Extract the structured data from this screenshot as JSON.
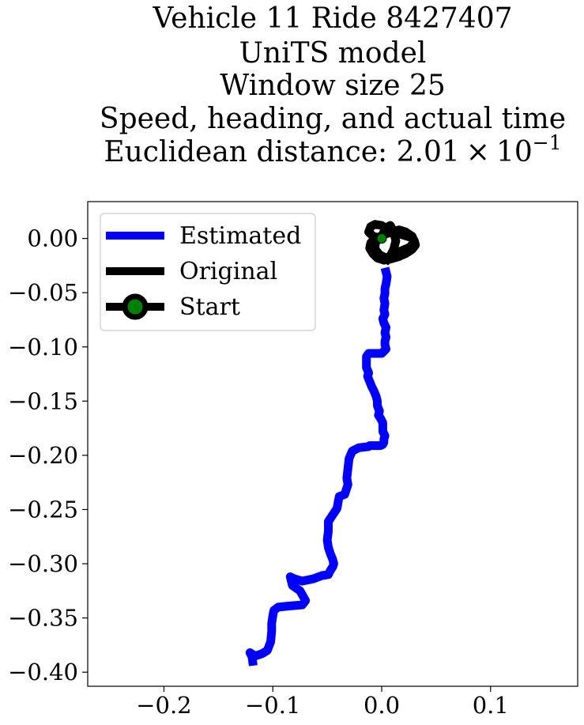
{
  "chart_data": {
    "type": "line",
    "title_lines": [
      "Vehicle 11 Ride 8427407",
      "UniTS model",
      "Window size 25",
      "Speed, heading, and actual time"
    ],
    "title_distance_prefix": "Euclidean distance: ",
    "title_distance_mantissa": "2.01",
    "title_distance_times": "×",
    "title_distance_base": "10",
    "title_distance_exponent": "−1",
    "xlim": [
      -0.27,
      0.18
    ],
    "ylim": [
      -0.413,
      0.034
    ],
    "xticks": [
      {
        "value": -0.2,
        "label": "−0.2"
      },
      {
        "value": -0.1,
        "label": "−0.1"
      },
      {
        "value": 0.0,
        "label": "0.0"
      },
      {
        "value": 0.1,
        "label": "0.1"
      }
    ],
    "yticks": [
      {
        "value": 0.0,
        "label": "0.00"
      },
      {
        "value": -0.05,
        "label": "−0.05"
      },
      {
        "value": -0.1,
        "label": "−0.10"
      },
      {
        "value": -0.15,
        "label": "−0.15"
      },
      {
        "value": -0.2,
        "label": "−0.20"
      },
      {
        "value": -0.25,
        "label": "−0.25"
      },
      {
        "value": -0.3,
        "label": "−0.30"
      },
      {
        "value": -0.35,
        "label": "−0.35"
      },
      {
        "value": -0.4,
        "label": "−0.40"
      }
    ],
    "legend": {
      "location": "upper-left",
      "entries": [
        {
          "key": "estimated",
          "label": "Estimated",
          "color": "#0000ff"
        },
        {
          "key": "original",
          "label": "Original",
          "color": "#000000"
        },
        {
          "key": "start",
          "label": "Start",
          "color": "#000000",
          "marker_color": "#008000"
        }
      ]
    },
    "series": [
      {
        "name": "Estimated",
        "color": "#0000ff",
        "x": [
          0.003,
          0.005,
          0.004,
          0.003,
          0.003,
          0.002,
          0.003,
          0.002,
          0.003,
          0.001,
          0.002,
          0.004,
          0.003,
          0.004,
          0.003,
          0.003,
          0.004,
          0.002,
          0.0,
          -0.001,
          -0.004,
          -0.012,
          -0.014,
          -0.014,
          -0.014,
          -0.012,
          -0.013,
          -0.011,
          -0.009,
          -0.007,
          -0.005,
          -0.004,
          -0.004,
          -0.003,
          -0.002,
          -0.003,
          -0.001,
          0.001,
          0.001,
          0.001,
          0.003,
          0.002,
          0.002,
          0.001,
          -0.001,
          -0.008,
          -0.011,
          -0.012,
          -0.021,
          -0.027,
          -0.03,
          -0.031,
          -0.032,
          -0.031,
          -0.034,
          -0.039,
          -0.04,
          -0.041,
          -0.045,
          -0.049,
          -0.049,
          -0.05,
          -0.049,
          -0.047,
          -0.045,
          -0.044,
          -0.045,
          -0.047,
          -0.048,
          -0.049,
          -0.055,
          -0.063,
          -0.073,
          -0.08,
          -0.084,
          -0.082,
          -0.075,
          -0.07,
          -0.073,
          -0.085,
          -0.095,
          -0.099,
          -0.1,
          -0.101,
          -0.101,
          -0.102,
          -0.105,
          -0.11,
          -0.116,
          -0.118,
          -0.121,
          -0.119,
          -0.118
        ],
        "y": [
          -0.027,
          -0.035,
          -0.042,
          -0.046,
          -0.051,
          -0.055,
          -0.06,
          -0.066,
          -0.07,
          -0.074,
          -0.078,
          -0.082,
          -0.087,
          -0.091,
          -0.095,
          -0.098,
          -0.102,
          -0.104,
          -0.106,
          -0.106,
          -0.106,
          -0.106,
          -0.109,
          -0.114,
          -0.119,
          -0.124,
          -0.127,
          -0.132,
          -0.137,
          -0.141,
          -0.146,
          -0.15,
          -0.154,
          -0.157,
          -0.159,
          -0.163,
          -0.166,
          -0.17,
          -0.174,
          -0.178,
          -0.182,
          -0.185,
          -0.188,
          -0.19,
          -0.191,
          -0.191,
          -0.191,
          -0.192,
          -0.193,
          -0.196,
          -0.203,
          -0.212,
          -0.221,
          -0.227,
          -0.236,
          -0.238,
          -0.243,
          -0.249,
          -0.255,
          -0.261,
          -0.27,
          -0.278,
          -0.285,
          -0.291,
          -0.296,
          -0.3,
          -0.303,
          -0.306,
          -0.308,
          -0.31,
          -0.311,
          -0.314,
          -0.316,
          -0.314,
          -0.312,
          -0.32,
          -0.325,
          -0.334,
          -0.338,
          -0.339,
          -0.34,
          -0.343,
          -0.348,
          -0.355,
          -0.362,
          -0.372,
          -0.38,
          -0.383,
          -0.385,
          -0.384,
          -0.382,
          -0.386,
          -0.394
        ]
      },
      {
        "name": "Original",
        "color": "#000000",
        "x": [
          0.0,
          -0.008,
          -0.012,
          -0.01,
          -0.006,
          0.0,
          0.006,
          0.012,
          0.02,
          0.027,
          0.03,
          0.031,
          0.028,
          0.022,
          0.015,
          0.008,
          0.002,
          -0.004,
          -0.008,
          -0.011,
          -0.01,
          -0.005,
          0.003,
          0.01,
          0.016,
          0.022,
          0.028,
          0.03,
          0.026,
          0.019,
          0.011,
          0.004,
          -0.002,
          -0.006,
          -0.006,
          0.0,
          0.004,
          0.008,
          0.011,
          0.013,
          0.011,
          0.007,
          0.003
        ],
        "y": [
          0.0,
          0.002,
          0.006,
          0.011,
          0.013,
          0.012,
          0.008,
          0.006,
          0.003,
          0.001,
          -0.002,
          -0.006,
          -0.01,
          -0.014,
          -0.017,
          -0.019,
          -0.02,
          -0.018,
          -0.014,
          -0.009,
          -0.004,
          0.0,
          0.004,
          0.006,
          0.008,
          0.006,
          0.002,
          -0.003,
          -0.008,
          -0.011,
          -0.015,
          -0.018,
          -0.015,
          -0.01,
          -0.004,
          0.002,
          0.01,
          0.012,
          0.006,
          -0.002,
          -0.01,
          -0.018,
          -0.022
        ]
      }
    ],
    "start_point": {
      "x": 0.0,
      "y": 0.0,
      "marker_color": "#008000",
      "edge_color": "#000000"
    }
  }
}
